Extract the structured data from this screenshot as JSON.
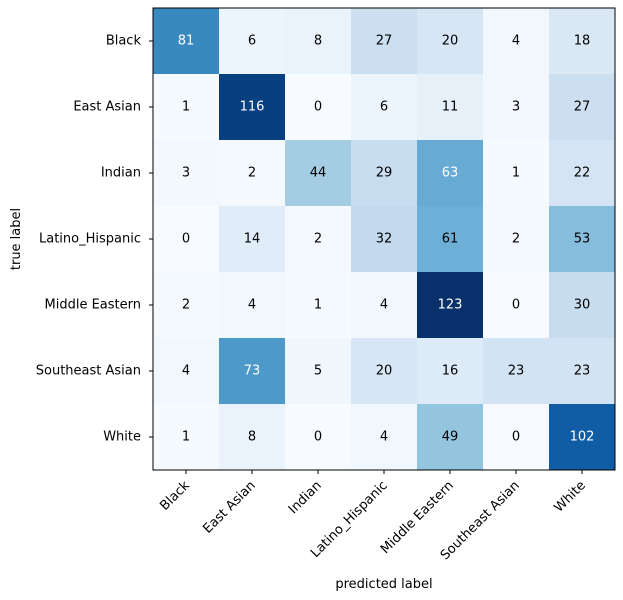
{
  "chart_data": {
    "type": "heatmap",
    "title": "",
    "xlabel": "predicted label",
    "ylabel": "true label",
    "x_categories": [
      "Black",
      "East Asian",
      "Indian",
      "Latino_Hispanic",
      "Middle Eastern",
      "Southeast Asian",
      "White"
    ],
    "y_categories": [
      "Black",
      "East Asian",
      "Indian",
      "Latino_Hispanic",
      "Middle Eastern",
      "Southeast Asian",
      "White"
    ],
    "values": [
      [
        81,
        6,
        8,
        27,
        20,
        4,
        18
      ],
      [
        1,
        116,
        0,
        6,
        11,
        3,
        27
      ],
      [
        3,
        2,
        44,
        29,
        63,
        1,
        22
      ],
      [
        0,
        14,
        2,
        32,
        61,
        2,
        53
      ],
      [
        2,
        4,
        1,
        4,
        123,
        0,
        30
      ],
      [
        4,
        73,
        5,
        20,
        16,
        23,
        23
      ],
      [
        1,
        8,
        0,
        4,
        49,
        0,
        102
      ]
    ],
    "colormap": "Blues",
    "value_range": [
      0,
      123
    ],
    "grid": false,
    "legend": "none"
  }
}
